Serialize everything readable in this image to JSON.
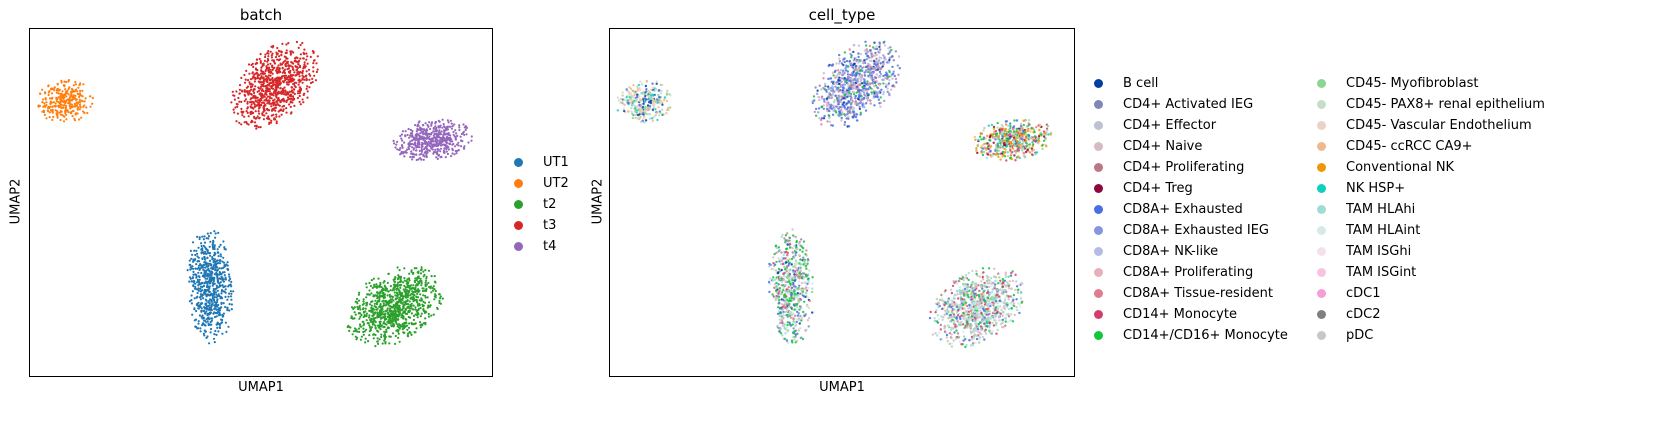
{
  "chart_data": [
    {
      "type": "scatter",
      "title": "batch",
      "xlabel": "UMAP1",
      "ylabel": "UMAP2",
      "grid": false,
      "legend_placement": "right",
      "series": [
        {
          "name": "UT1",
          "color": "#1f77b4",
          "cluster": {
            "cx": 0.39,
            "cy": 0.26,
            "rx": 0.05,
            "ry": 0.17,
            "tilt": 2,
            "n": 650
          }
        },
        {
          "name": "UT2",
          "color": "#ff7f0e",
          "cluster": {
            "cx": 0.075,
            "cy": 0.79,
            "rx": 0.06,
            "ry": 0.065,
            "tilt": -35,
            "n": 300
          }
        },
        {
          "name": "t2",
          "color": "#2ca02c",
          "cluster": {
            "cx": 0.79,
            "cy": 0.2,
            "rx": 0.09,
            "ry": 0.13,
            "tilt": -35,
            "n": 950
          }
        },
        {
          "name": "t3",
          "color": "#d62728",
          "cluster": {
            "cx": 0.53,
            "cy": 0.84,
            "rx": 0.08,
            "ry": 0.14,
            "tilt": -28,
            "n": 850
          }
        },
        {
          "name": "t4",
          "color": "#9467bd",
          "cluster": {
            "cx": 0.87,
            "cy": 0.68,
            "rx": 0.09,
            "ry": 0.06,
            "tilt": 12,
            "n": 500
          }
        }
      ]
    },
    {
      "type": "scatter",
      "title": "cell_type",
      "xlabel": "UMAP1",
      "ylabel": "UMAP2",
      "grid": false,
      "legend_placement": "right",
      "series": [
        {
          "name": "B cell",
          "color": "#023fa5"
        },
        {
          "name": "CD4+ Activated IEG",
          "color": "#7d87b9"
        },
        {
          "name": "CD4+ Effector",
          "color": "#bec1d4"
        },
        {
          "name": "CD4+ Naive",
          "color": "#d6bcc0"
        },
        {
          "name": "CD4+ Proliferating",
          "color": "#bb7784"
        },
        {
          "name": "CD4+ Treg",
          "color": "#8e063b"
        },
        {
          "name": "CD8A+ Exhausted",
          "color": "#4a6fe3"
        },
        {
          "name": "CD8A+ Exhausted IEG",
          "color": "#8595e1"
        },
        {
          "name": "CD8A+ NK-like",
          "color": "#b5bbe3"
        },
        {
          "name": "CD8A+ Proliferating",
          "color": "#e6afb9"
        },
        {
          "name": "CD8A+ Tissue-resident",
          "color": "#e07b91"
        },
        {
          "name": "CD14+ Monocyte",
          "color": "#d33f6a"
        },
        {
          "name": "CD14+/CD16+ Monocyte",
          "color": "#11c638"
        },
        {
          "name": "CD45- Myofibroblast",
          "color": "#8dd593"
        },
        {
          "name": "CD45- PAX8+ renal epithelium",
          "color": "#c6dec7"
        },
        {
          "name": "CD45- Vascular Endothelium",
          "color": "#ead3c6"
        },
        {
          "name": "CD45- ccRCC CA9+",
          "color": "#f0b98d"
        },
        {
          "name": "Conventional NK",
          "color": "#ef9708"
        },
        {
          "name": "NK HSP+",
          "color": "#0fcfc0"
        },
        {
          "name": "TAM HLAhi",
          "color": "#9cded6"
        },
        {
          "name": "TAM HLAint",
          "color": "#d5eae7"
        },
        {
          "name": "TAM ISGhi",
          "color": "#f3e1eb"
        },
        {
          "name": "TAM ISGint",
          "color": "#f6c4e1"
        },
        {
          "name": "cDC1",
          "color": "#f79cd4"
        },
        {
          "name": "cDC2",
          "color": "#7f7f7f"
        },
        {
          "name": "pDC",
          "color": "#c7c7c7"
        }
      ]
    }
  ]
}
